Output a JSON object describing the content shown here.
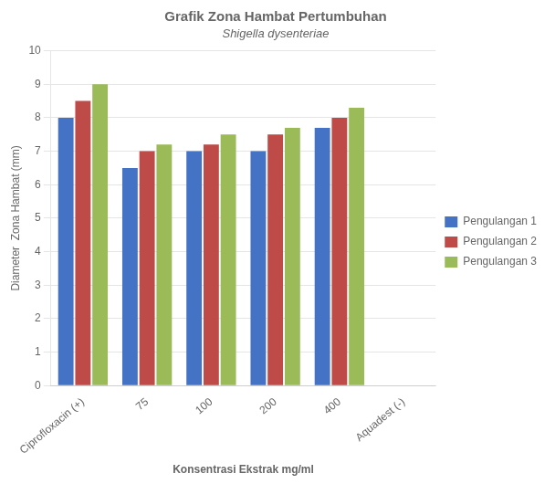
{
  "chart_data": {
    "type": "bar",
    "title": "Grafik Zona Hambat Pertumbuhan",
    "subtitle": "Shigella dysenteriae",
    "x_label": "Konsentrasi Ekstrak mg/ml",
    "y_label": "Diameter  Zona Hambat (mm)",
    "categories": [
      "Ciprofloxacin (+)",
      "75",
      "100",
      "200",
      "400",
      "Aquadest (-)"
    ],
    "series": [
      {
        "name": "Pengulangan 1",
        "color": "#4472C4",
        "values": [
          8.0,
          6.5,
          7.0,
          7.0,
          7.7,
          0.0
        ]
      },
      {
        "name": "Pengulangan 2",
        "color": "#BE4B48",
        "values": [
          8.5,
          7.0,
          7.2,
          7.5,
          8.0,
          0.0
        ]
      },
      {
        "name": "Pengulangan 3",
        "color": "#9BBB59",
        "values": [
          9.0,
          7.2,
          7.5,
          7.7,
          8.3,
          0.0
        ]
      }
    ],
    "ylim": [
      0,
      10
    ],
    "yticks": [
      0,
      1,
      2,
      3,
      4,
      5,
      6,
      7,
      8,
      9,
      10
    ],
    "grid": true,
    "legend": "right"
  }
}
